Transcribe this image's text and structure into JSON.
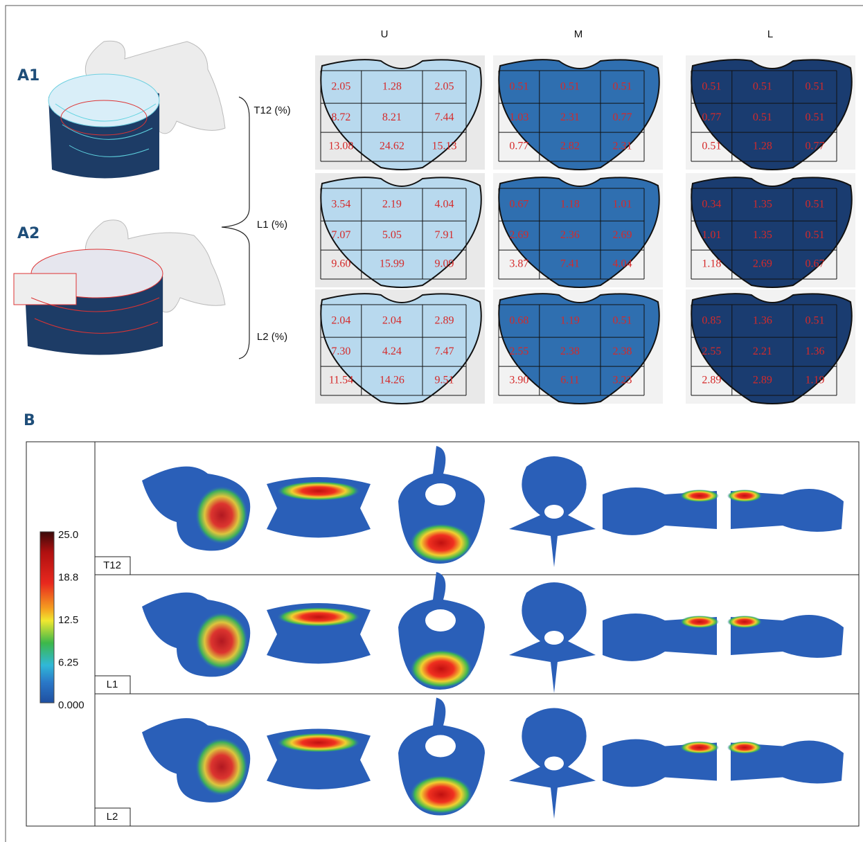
{
  "panel_a": {
    "labels": [
      "A1",
      "A2"
    ],
    "columns": [
      "U",
      "M",
      "L"
    ],
    "rows": [
      {
        "label": "T12 (%)",
        "grids": [
          [
            [
              "2.05",
              "1.28",
              "2.05"
            ],
            [
              "8.72",
              "8.21",
              "7.44"
            ],
            [
              "13.08",
              "24.62",
              "15.13"
            ]
          ],
          [
            [
              "0.51",
              "0.51",
              "0.51"
            ],
            [
              "1.03",
              "2.31",
              "0.77"
            ],
            [
              "0.77",
              "2.82",
              "2.31"
            ]
          ],
          [
            [
              "0.51",
              "0.51",
              "0.51"
            ],
            [
              "0.77",
              "0.51",
              "0.51"
            ],
            [
              "0.51",
              "1.28",
              "0.77"
            ]
          ]
        ]
      },
      {
        "label": "L1 (%)",
        "grids": [
          [
            [
              "3.54",
              "2.19",
              "4.04"
            ],
            [
              "7.07",
              "5.05",
              "7.91"
            ],
            [
              "9.60",
              "15.99",
              "9.09"
            ]
          ],
          [
            [
              "0.67",
              "1.18",
              "1.01"
            ],
            [
              "2.69",
              "2.36",
              "2.69"
            ],
            [
              "3.87",
              "7.41",
              "4.04"
            ]
          ],
          [
            [
              "0.34",
              "1.35",
              "0.51"
            ],
            [
              "1.01",
              "1.35",
              "0.51"
            ],
            [
              "1.18",
              "2.69",
              "0.67"
            ]
          ]
        ]
      },
      {
        "label": "L2 (%)",
        "grids": [
          [
            [
              "2.04",
              "2.04",
              "2.89"
            ],
            [
              "7.30",
              "4.24",
              "7.47"
            ],
            [
              "11.54",
              "14.26",
              "9.51"
            ]
          ],
          [
            [
              "0.68",
              "1.19",
              "0.51"
            ],
            [
              "2.55",
              "2.38",
              "2.38"
            ],
            [
              "3.90",
              "6.11",
              "3.23"
            ]
          ],
          [
            [
              "0.85",
              "1.36",
              "0.51"
            ],
            [
              "2.55",
              "2.21",
              "1.36"
            ],
            [
              "2.89",
              "2.89",
              "1.19"
            ]
          ]
        ]
      }
    ]
  },
  "panel_b": {
    "label": "B",
    "colorbar": [
      "25.0",
      "18.8",
      "12.5",
      "6.25",
      "0.000"
    ],
    "rows": [
      "T12",
      "L1",
      "L2"
    ]
  }
}
